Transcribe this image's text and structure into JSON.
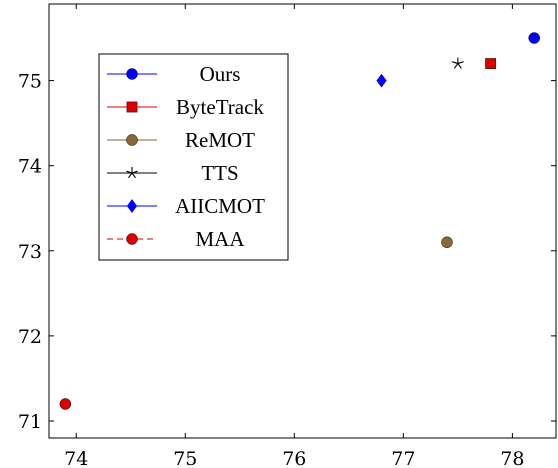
{
  "chart_data": {
    "type": "scatter",
    "title": "",
    "xlabel": "",
    "ylabel": "",
    "xlim": [
      73.75,
      78.4
    ],
    "ylim": [
      70.8,
      75.9
    ],
    "xticks": [
      "74",
      "75",
      "76",
      "77",
      "78"
    ],
    "yticks": [
      "71",
      "72",
      "73",
      "74",
      "75"
    ],
    "grid": false,
    "legend_position": "upper-left",
    "series": [
      {
        "name": "Ours",
        "marker": "circle",
        "color": "#0000ff",
        "line_style": "solid",
        "points": [
          [
            78.2,
            75.5
          ]
        ]
      },
      {
        "name": "ByteTrack",
        "marker": "square",
        "color": "#dd0000",
        "line_style": "solid",
        "points": [
          [
            77.8,
            75.2
          ]
        ]
      },
      {
        "name": "ReMOT",
        "marker": "circle",
        "color": "#8b6637",
        "line_style": "solid",
        "points": [
          [
            77.4,
            73.1
          ]
        ]
      },
      {
        "name": "TTS",
        "marker": "star",
        "color": "#000000",
        "line_style": "solid",
        "points": [
          [
            77.5,
            75.2
          ]
        ]
      },
      {
        "name": "AIICMOT",
        "marker": "diamond",
        "color": "#0000ff",
        "line_style": "solid",
        "points": [
          [
            76.8,
            75.0
          ]
        ]
      },
      {
        "name": "MAA",
        "marker": "circle",
        "color": "#dd0000",
        "line_style": "dashed",
        "points": [
          [
            73.9,
            71.2
          ]
        ]
      }
    ]
  }
}
